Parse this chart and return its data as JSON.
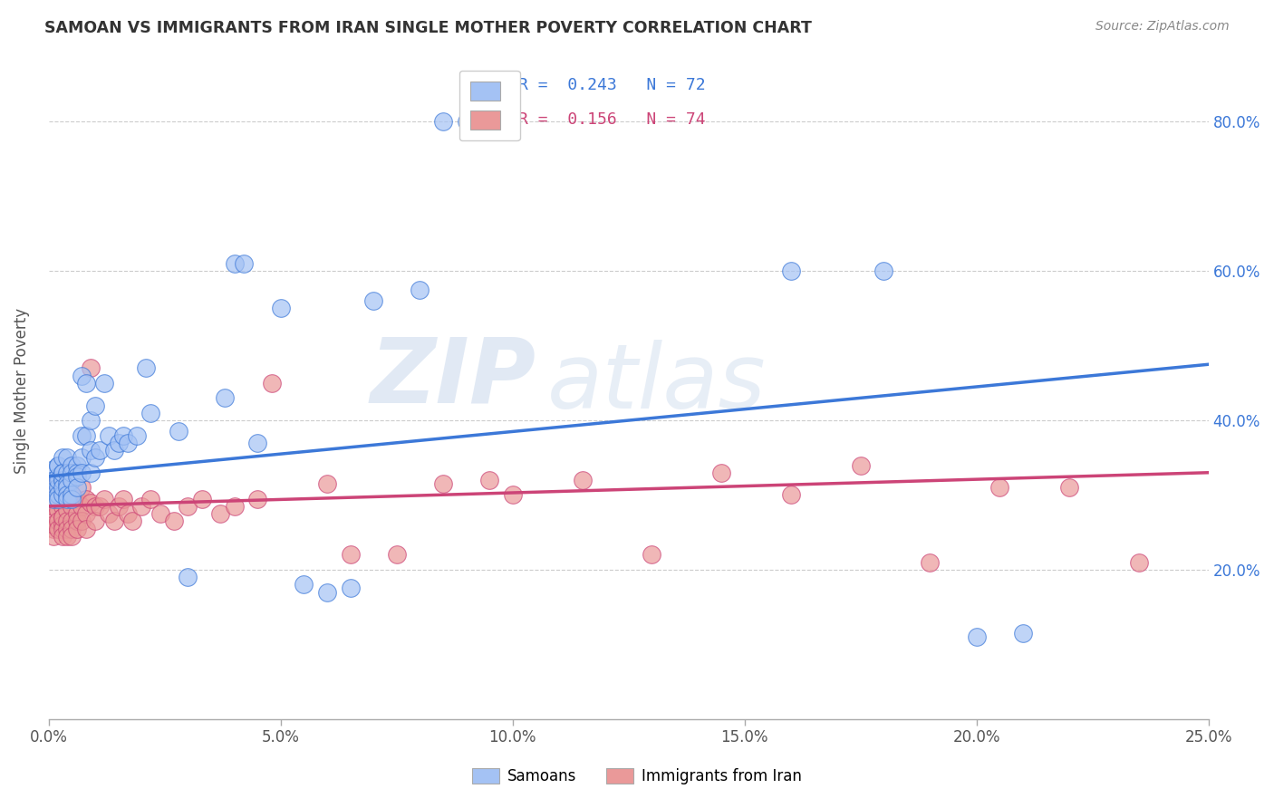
{
  "title": "SAMOAN VS IMMIGRANTS FROM IRAN SINGLE MOTHER POVERTY CORRELATION CHART",
  "source": "Source: ZipAtlas.com",
  "xlabel_ticks": [
    "0.0%",
    "5.0%",
    "10.0%",
    "15.0%",
    "20.0%",
    "25.0%"
  ],
  "ylabel_ticks": [
    "20.0%",
    "40.0%",
    "60.0%",
    "80.0%"
  ],
  "xlim": [
    0.0,
    0.25
  ],
  "ylim": [
    0.0,
    0.88
  ],
  "legend_label1": "Samoans",
  "legend_label2": "Immigrants from Iran",
  "R1": "0.243",
  "N1": "72",
  "R2": "0.156",
  "N2": "74",
  "color_blue": "#a4c2f4",
  "color_pink": "#ea9999",
  "line_color_blue": "#3c78d8",
  "line_color_pink": "#cc4477",
  "watermark_zip": "ZIP",
  "watermark_atlas": "atlas",
  "background_color": "#ffffff",
  "grid_color": "#cccccc",
  "samoans_x": [
    0.001,
    0.001,
    0.001,
    0.001,
    0.002,
    0.002,
    0.002,
    0.002,
    0.002,
    0.002,
    0.002,
    0.003,
    0.003,
    0.003,
    0.003,
    0.003,
    0.003,
    0.003,
    0.004,
    0.004,
    0.004,
    0.004,
    0.004,
    0.004,
    0.005,
    0.005,
    0.005,
    0.005,
    0.005,
    0.006,
    0.006,
    0.006,
    0.006,
    0.007,
    0.007,
    0.007,
    0.007,
    0.008,
    0.008,
    0.009,
    0.009,
    0.009,
    0.01,
    0.01,
    0.011,
    0.012,
    0.013,
    0.014,
    0.015,
    0.016,
    0.017,
    0.019,
    0.021,
    0.022,
    0.028,
    0.03,
    0.038,
    0.04,
    0.042,
    0.045,
    0.05,
    0.055,
    0.06,
    0.065,
    0.07,
    0.08,
    0.085,
    0.09,
    0.16,
    0.18,
    0.2,
    0.21
  ],
  "samoans_y": [
    0.335,
    0.32,
    0.305,
    0.295,
    0.34,
    0.325,
    0.31,
    0.3,
    0.295,
    0.34,
    0.32,
    0.35,
    0.33,
    0.32,
    0.3,
    0.32,
    0.31,
    0.33,
    0.35,
    0.33,
    0.315,
    0.31,
    0.3,
    0.295,
    0.34,
    0.33,
    0.32,
    0.3,
    0.295,
    0.34,
    0.33,
    0.325,
    0.31,
    0.46,
    0.38,
    0.35,
    0.33,
    0.45,
    0.38,
    0.4,
    0.36,
    0.33,
    0.42,
    0.35,
    0.36,
    0.45,
    0.38,
    0.36,
    0.37,
    0.38,
    0.37,
    0.38,
    0.47,
    0.41,
    0.385,
    0.19,
    0.43,
    0.61,
    0.61,
    0.37,
    0.55,
    0.18,
    0.17,
    0.175,
    0.56,
    0.575,
    0.8,
    0.8,
    0.6,
    0.6,
    0.11,
    0.115
  ],
  "iran_x": [
    0.001,
    0.001,
    0.001,
    0.001,
    0.001,
    0.002,
    0.002,
    0.002,
    0.002,
    0.002,
    0.002,
    0.003,
    0.003,
    0.003,
    0.003,
    0.003,
    0.003,
    0.004,
    0.004,
    0.004,
    0.004,
    0.004,
    0.005,
    0.005,
    0.005,
    0.005,
    0.005,
    0.006,
    0.006,
    0.006,
    0.006,
    0.007,
    0.007,
    0.007,
    0.008,
    0.008,
    0.008,
    0.009,
    0.009,
    0.01,
    0.01,
    0.011,
    0.012,
    0.013,
    0.014,
    0.015,
    0.016,
    0.017,
    0.018,
    0.02,
    0.022,
    0.024,
    0.027,
    0.03,
    0.033,
    0.037,
    0.04,
    0.045,
    0.048,
    0.06,
    0.065,
    0.075,
    0.085,
    0.095,
    0.1,
    0.115,
    0.13,
    0.145,
    0.16,
    0.175,
    0.19,
    0.205,
    0.22,
    0.235
  ],
  "iran_y": [
    0.27,
    0.255,
    0.245,
    0.285,
    0.26,
    0.28,
    0.265,
    0.255,
    0.3,
    0.32,
    0.31,
    0.285,
    0.27,
    0.26,
    0.255,
    0.245,
    0.27,
    0.3,
    0.28,
    0.265,
    0.255,
    0.245,
    0.3,
    0.285,
    0.265,
    0.255,
    0.245,
    0.295,
    0.275,
    0.265,
    0.255,
    0.31,
    0.285,
    0.265,
    0.295,
    0.275,
    0.255,
    0.47,
    0.29,
    0.285,
    0.265,
    0.285,
    0.295,
    0.275,
    0.265,
    0.285,
    0.295,
    0.275,
    0.265,
    0.285,
    0.295,
    0.275,
    0.265,
    0.285,
    0.295,
    0.275,
    0.285,
    0.295,
    0.45,
    0.315,
    0.22,
    0.22,
    0.315,
    0.32,
    0.3,
    0.32,
    0.22,
    0.33,
    0.3,
    0.34,
    0.21,
    0.31,
    0.31,
    0.21
  ]
}
